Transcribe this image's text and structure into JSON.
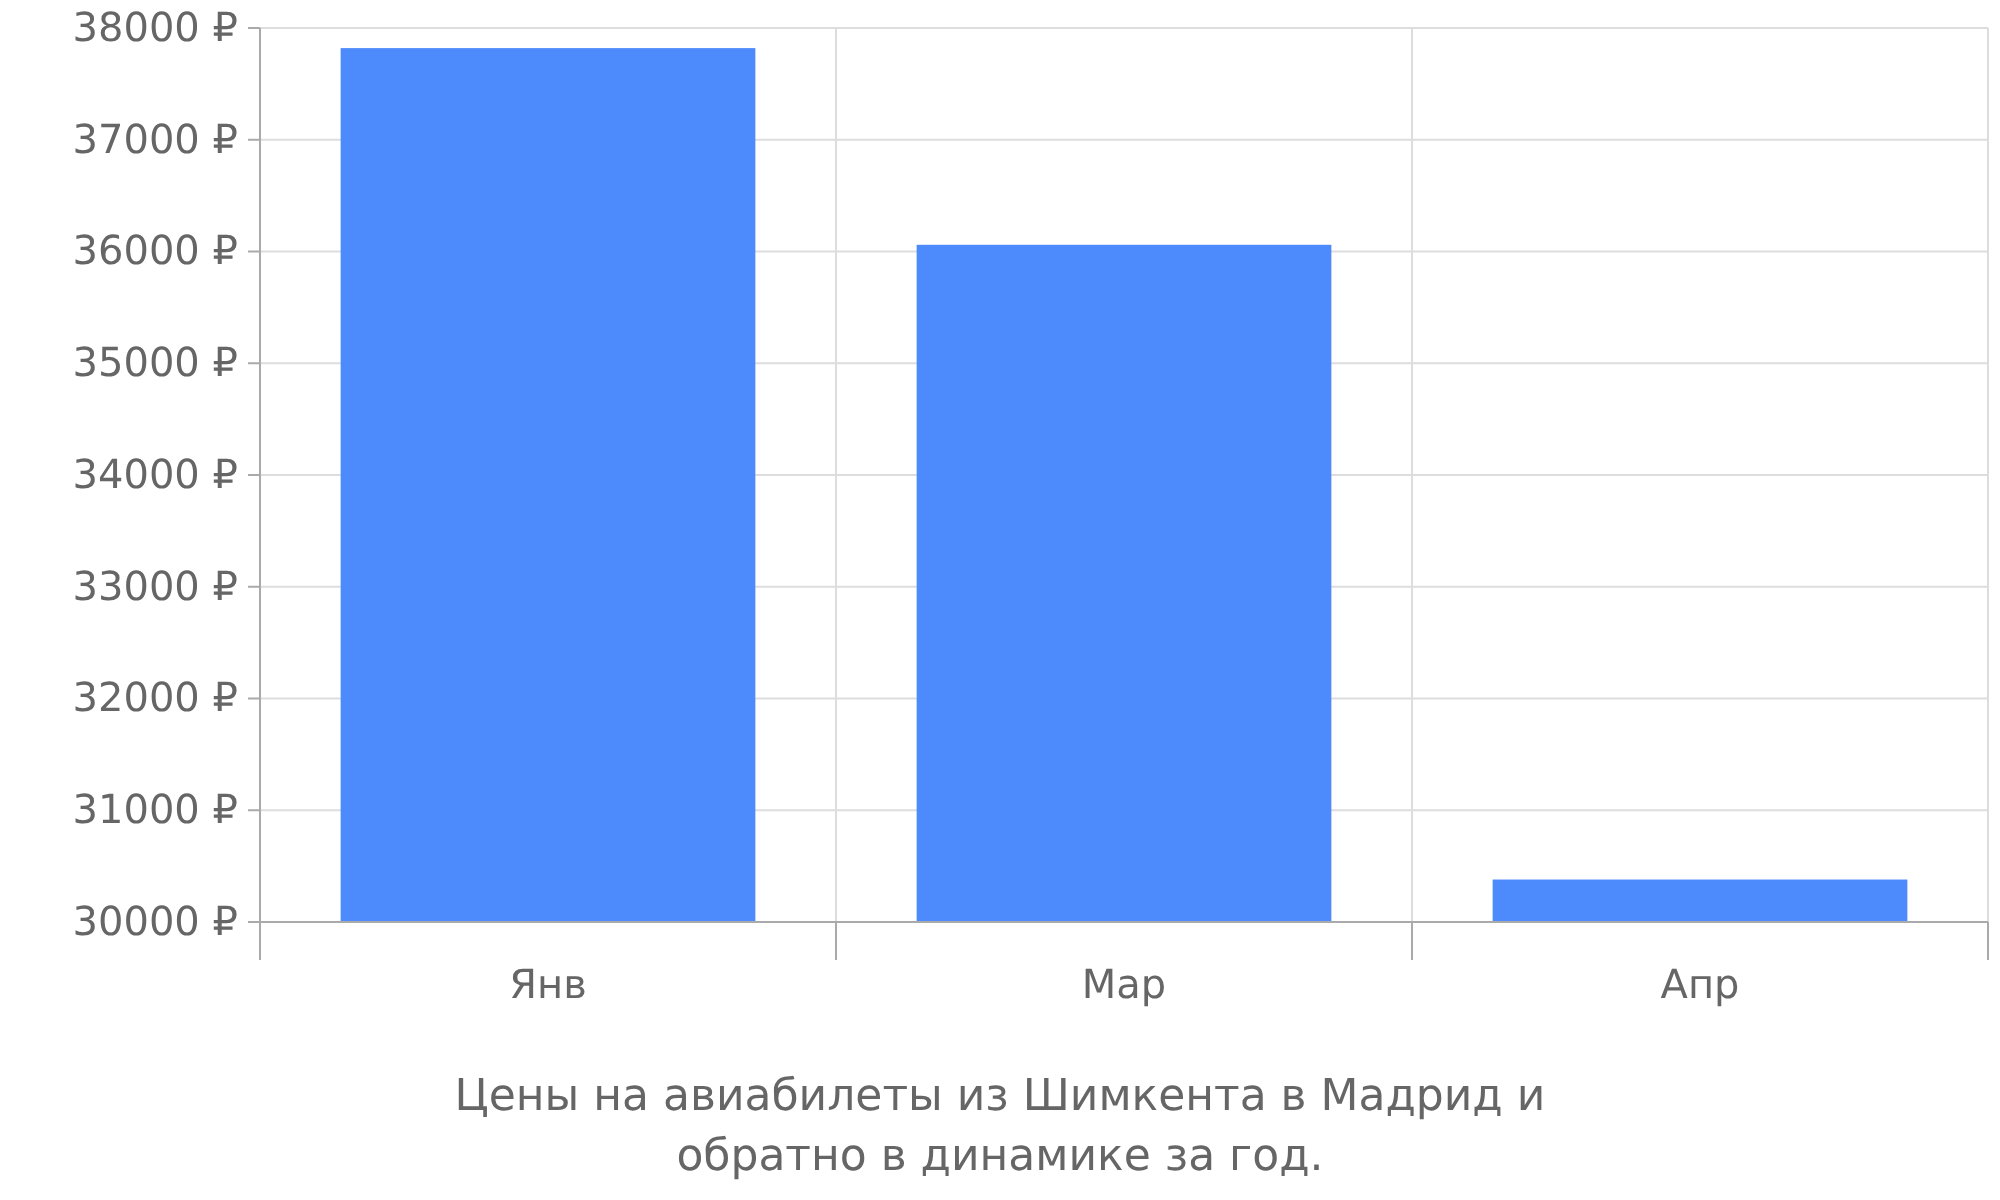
{
  "chart_data": {
    "type": "bar",
    "categories": [
      "Янв",
      "Мар",
      "Апр"
    ],
    "values": [
      37820,
      36060,
      30380
    ],
    "color": "#4d8afc",
    "ylim": [
      30000,
      38000
    ],
    "yticks": [
      {
        "value": 30000,
        "label": "30000 ₽"
      },
      {
        "value": 31000,
        "label": "31000 ₽"
      },
      {
        "value": 32000,
        "label": "32000 ₽"
      },
      {
        "value": 33000,
        "label": "33000 ₽"
      },
      {
        "value": 34000,
        "label": "34000 ₽"
      },
      {
        "value": 35000,
        "label": "35000 ₽"
      },
      {
        "value": 36000,
        "label": "36000 ₽"
      },
      {
        "value": 37000,
        "label": "37000 ₽"
      },
      {
        "value": 38000,
        "label": "38000 ₽"
      }
    ],
    "grid": true,
    "annotations": [
      "Цены на авиабилеты из Шимкента в Мадрид и обратно в динамике за год."
    ]
  }
}
